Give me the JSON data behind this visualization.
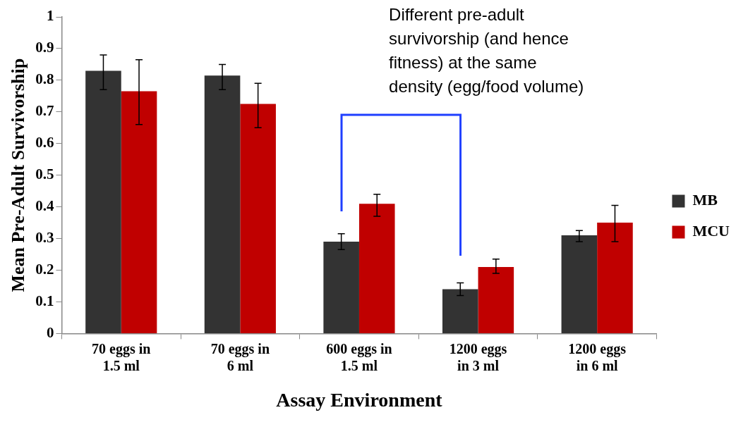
{
  "chart_data": {
    "type": "bar",
    "xlabel": "Assay Environment",
    "ylabel": "Mean Pre-Adult Survivorship",
    "categories": [
      "70 eggs in 1.5 ml",
      "70 eggs in 6 ml",
      "600 eggs in 1.5 ml",
      "1200 eggs in 3 ml",
      "1200 eggs in 6 ml"
    ],
    "series": [
      {
        "name": "MB",
        "color": "#333333",
        "values": [
          0.83,
          0.815,
          0.29,
          0.14,
          0.31
        ],
        "errors": [
          [
            0.77,
            0.88
          ],
          [
            0.77,
            0.85
          ],
          [
            0.265,
            0.315
          ],
          [
            0.12,
            0.16
          ],
          [
            0.29,
            0.325
          ]
        ]
      },
      {
        "name": "MCU",
        "color": "#c00000",
        "values": [
          0.765,
          0.725,
          0.41,
          0.21,
          0.35
        ],
        "errors": [
          [
            0.66,
            0.865
          ],
          [
            0.65,
            0.79
          ],
          [
            0.37,
            0.44
          ],
          [
            0.19,
            0.235
          ],
          [
            0.29,
            0.405
          ]
        ]
      }
    ],
    "ylim": [
      0,
      1
    ],
    "yticks": [
      0,
      0.1,
      0.2,
      0.3,
      0.4,
      0.5,
      0.6,
      0.7,
      0.8,
      0.9,
      1
    ],
    "grid": false,
    "legend": "right",
    "annotations": [
      "Different pre-adult survivorship (and hence fitness) at the same density (egg/food volume)"
    ]
  }
}
